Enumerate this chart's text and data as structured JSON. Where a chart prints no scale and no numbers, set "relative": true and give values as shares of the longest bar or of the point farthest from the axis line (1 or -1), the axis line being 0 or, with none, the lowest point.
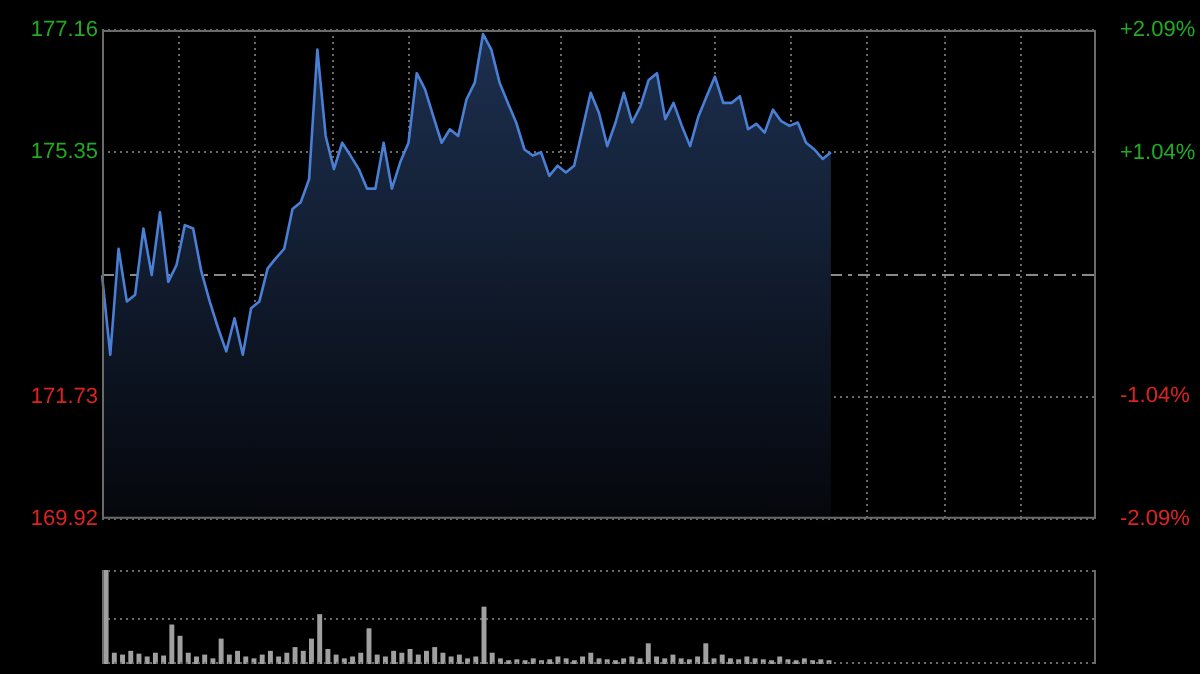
{
  "chart_data": [
    {
      "type": "area",
      "categories": [
        null,
        null,
        null,
        null,
        null,
        null,
        null,
        null,
        null,
        null,
        null,
        null,
        null,
        null,
        null,
        null,
        null,
        null,
        null,
        null,
        null,
        null,
        null,
        null,
        null,
        null,
        null,
        null,
        null,
        null,
        null,
        null,
        null,
        null,
        null,
        null,
        null,
        null,
        null,
        null,
        null,
        null,
        null,
        null,
        null,
        null,
        null,
        null,
        null,
        null,
        null,
        null,
        null,
        null,
        null,
        null,
        null,
        null,
        null,
        null,
        null,
        null,
        null,
        null,
        null,
        null,
        null,
        null,
        null,
        null,
        null,
        null,
        null,
        null,
        null,
        null,
        null,
        null,
        null,
        null,
        null,
        null,
        null,
        null,
        null,
        null,
        null,
        null,
        null,
        null,
        null,
        null,
        null,
        null,
        null,
        null,
        null,
        null,
        null,
        null,
        null,
        null,
        null,
        null,
        null,
        null,
        null,
        null,
        null,
        null,
        null,
        null,
        null,
        null,
        null,
        null,
        null,
        null,
        null,
        null,
        null
      ],
      "series": [
        {
          "color": "#4a7fd6",
          "values": [
            173.53,
            172.35,
            173.92,
            173.14,
            173.24,
            174.22,
            173.53,
            174.46,
            173.43,
            173.68,
            174.27,
            174.22,
            173.58,
            173.14,
            172.75,
            172.4,
            172.89,
            172.35,
            173.04,
            173.14,
            173.63,
            173.78,
            173.92,
            174.51,
            174.61,
            174.95,
            176.87,
            175.59,
            175.1,
            175.49,
            175.3,
            175.1,
            174.81,
            174.81,
            175.49,
            174.81,
            175.2,
            175.49,
            176.52,
            176.28,
            175.88,
            175.49,
            175.69,
            175.59,
            176.13,
            176.38,
            177.1,
            176.87,
            176.38,
            176.08,
            175.79,
            175.39,
            175.3,
            175.35,
            175.0,
            175.15,
            175.05,
            175.15,
            175.69,
            176.23,
            175.93,
            175.44,
            175.79,
            176.23,
            175.79,
            176.03,
            176.42,
            176.52,
            175.84,
            176.08,
            175.74,
            175.44,
            175.88,
            176.18,
            176.47,
            176.08,
            176.08,
            176.18,
            175.69,
            175.77,
            175.64,
            175.98,
            175.81,
            175.74,
            175.79,
            175.49,
            175.39,
            175.25,
            175.35,
            null,
            null,
            null,
            null,
            null,
            null,
            null,
            null,
            null,
            null,
            null,
            null,
            null,
            null,
            null,
            null,
            null,
            null,
            null,
            null,
            null,
            null,
            null,
            null,
            null,
            null,
            null,
            null,
            null,
            null,
            null,
            null
          ]
        }
      ],
      "ylim": [
        169.92,
        177.16
      ],
      "yticks": [
        169.92,
        171.73,
        175.35,
        177.16
      ],
      "y2lim": [
        -2.09,
        2.09
      ],
      "y2ticks": [
        {
          "value": -2.09,
          "label": "-2.09%"
        },
        {
          "value": -1.04,
          "label": "-1.04%"
        },
        {
          "value": 1.04,
          "label": "+1.04%"
        },
        {
          "value": 2.09,
          "label": "+2.09%"
        }
      ],
      "ref_lines": [
        {
          "axis": "y",
          "value": 173.54,
          "color": "#8a8a8a",
          "line_style": "dashed"
        }
      ],
      "grid": true,
      "legend": false,
      "marker": "none"
    },
    {
      "type": "bar",
      "relative": true,
      "categories": [
        null,
        null,
        null,
        null,
        null,
        null,
        null,
        null,
        null,
        null,
        null,
        null,
        null,
        null,
        null,
        null,
        null,
        null,
        null,
        null,
        null,
        null,
        null,
        null,
        null,
        null,
        null,
        null,
        null,
        null,
        null,
        null,
        null,
        null,
        null,
        null,
        null,
        null,
        null,
        null,
        null,
        null,
        null,
        null,
        null,
        null,
        null,
        null,
        null,
        null,
        null,
        null,
        null,
        null,
        null,
        null,
        null,
        null,
        null,
        null,
        null,
        null,
        null,
        null,
        null,
        null,
        null,
        null,
        null,
        null,
        null,
        null,
        null,
        null,
        null,
        null,
        null,
        null,
        null,
        null,
        null,
        null,
        null,
        null,
        null,
        null,
        null,
        null,
        null,
        null,
        null,
        null,
        null,
        null,
        null,
        null,
        null,
        null,
        null,
        null,
        null,
        null,
        null,
        null,
        null,
        null,
        null,
        null,
        null,
        null,
        null,
        null,
        null,
        null,
        null,
        null,
        null,
        null,
        null,
        null,
        null
      ],
      "color": "#a0a0a0",
      "values": [
        1,
        0.12,
        0.1,
        0.14,
        0.11,
        0.08,
        0.12,
        0.09,
        0.42,
        0.3,
        0.12,
        0.08,
        0.1,
        0.06,
        0.27,
        0.1,
        0.14,
        0.08,
        0.06,
        0.1,
        0.14,
        0.08,
        0.12,
        0.18,
        0.14,
        0.27,
        0.53,
        0.16,
        0.1,
        0.06,
        0.08,
        0.12,
        0.38,
        0.1,
        0.08,
        0.14,
        0.12,
        0.16,
        0.1,
        0.14,
        0.18,
        0.12,
        0.08,
        0.1,
        0.06,
        0.08,
        0.61,
        0.12,
        0.06,
        0.04,
        0.05,
        0.04,
        0.06,
        0.04,
        0.05,
        0.08,
        0.06,
        0.04,
        0.08,
        0.12,
        0.06,
        0.05,
        0.04,
        0.06,
        0.08,
        0.06,
        0.22,
        0.08,
        0.06,
        0.1,
        0.06,
        0.05,
        0.08,
        0.22,
        0.06,
        0.1,
        0.06,
        0.05,
        0.08,
        0.06,
        0.05,
        0.04,
        0.08,
        0.05,
        0.04,
        0.06,
        0.04,
        0.05,
        0.04,
        null,
        null,
        null,
        null,
        null,
        null,
        null,
        null,
        null,
        null,
        null,
        null,
        null,
        null,
        null,
        null,
        null,
        null,
        null,
        null,
        null,
        null,
        null,
        null,
        null,
        null,
        null,
        null,
        null,
        null,
        null,
        null
      ],
      "ref_lines": [
        {
          "axis": "y",
          "value": 0.5,
          "color": "#6a6a6a",
          "line_style": "dotted"
        }
      ],
      "legend": false
    }
  ]
}
